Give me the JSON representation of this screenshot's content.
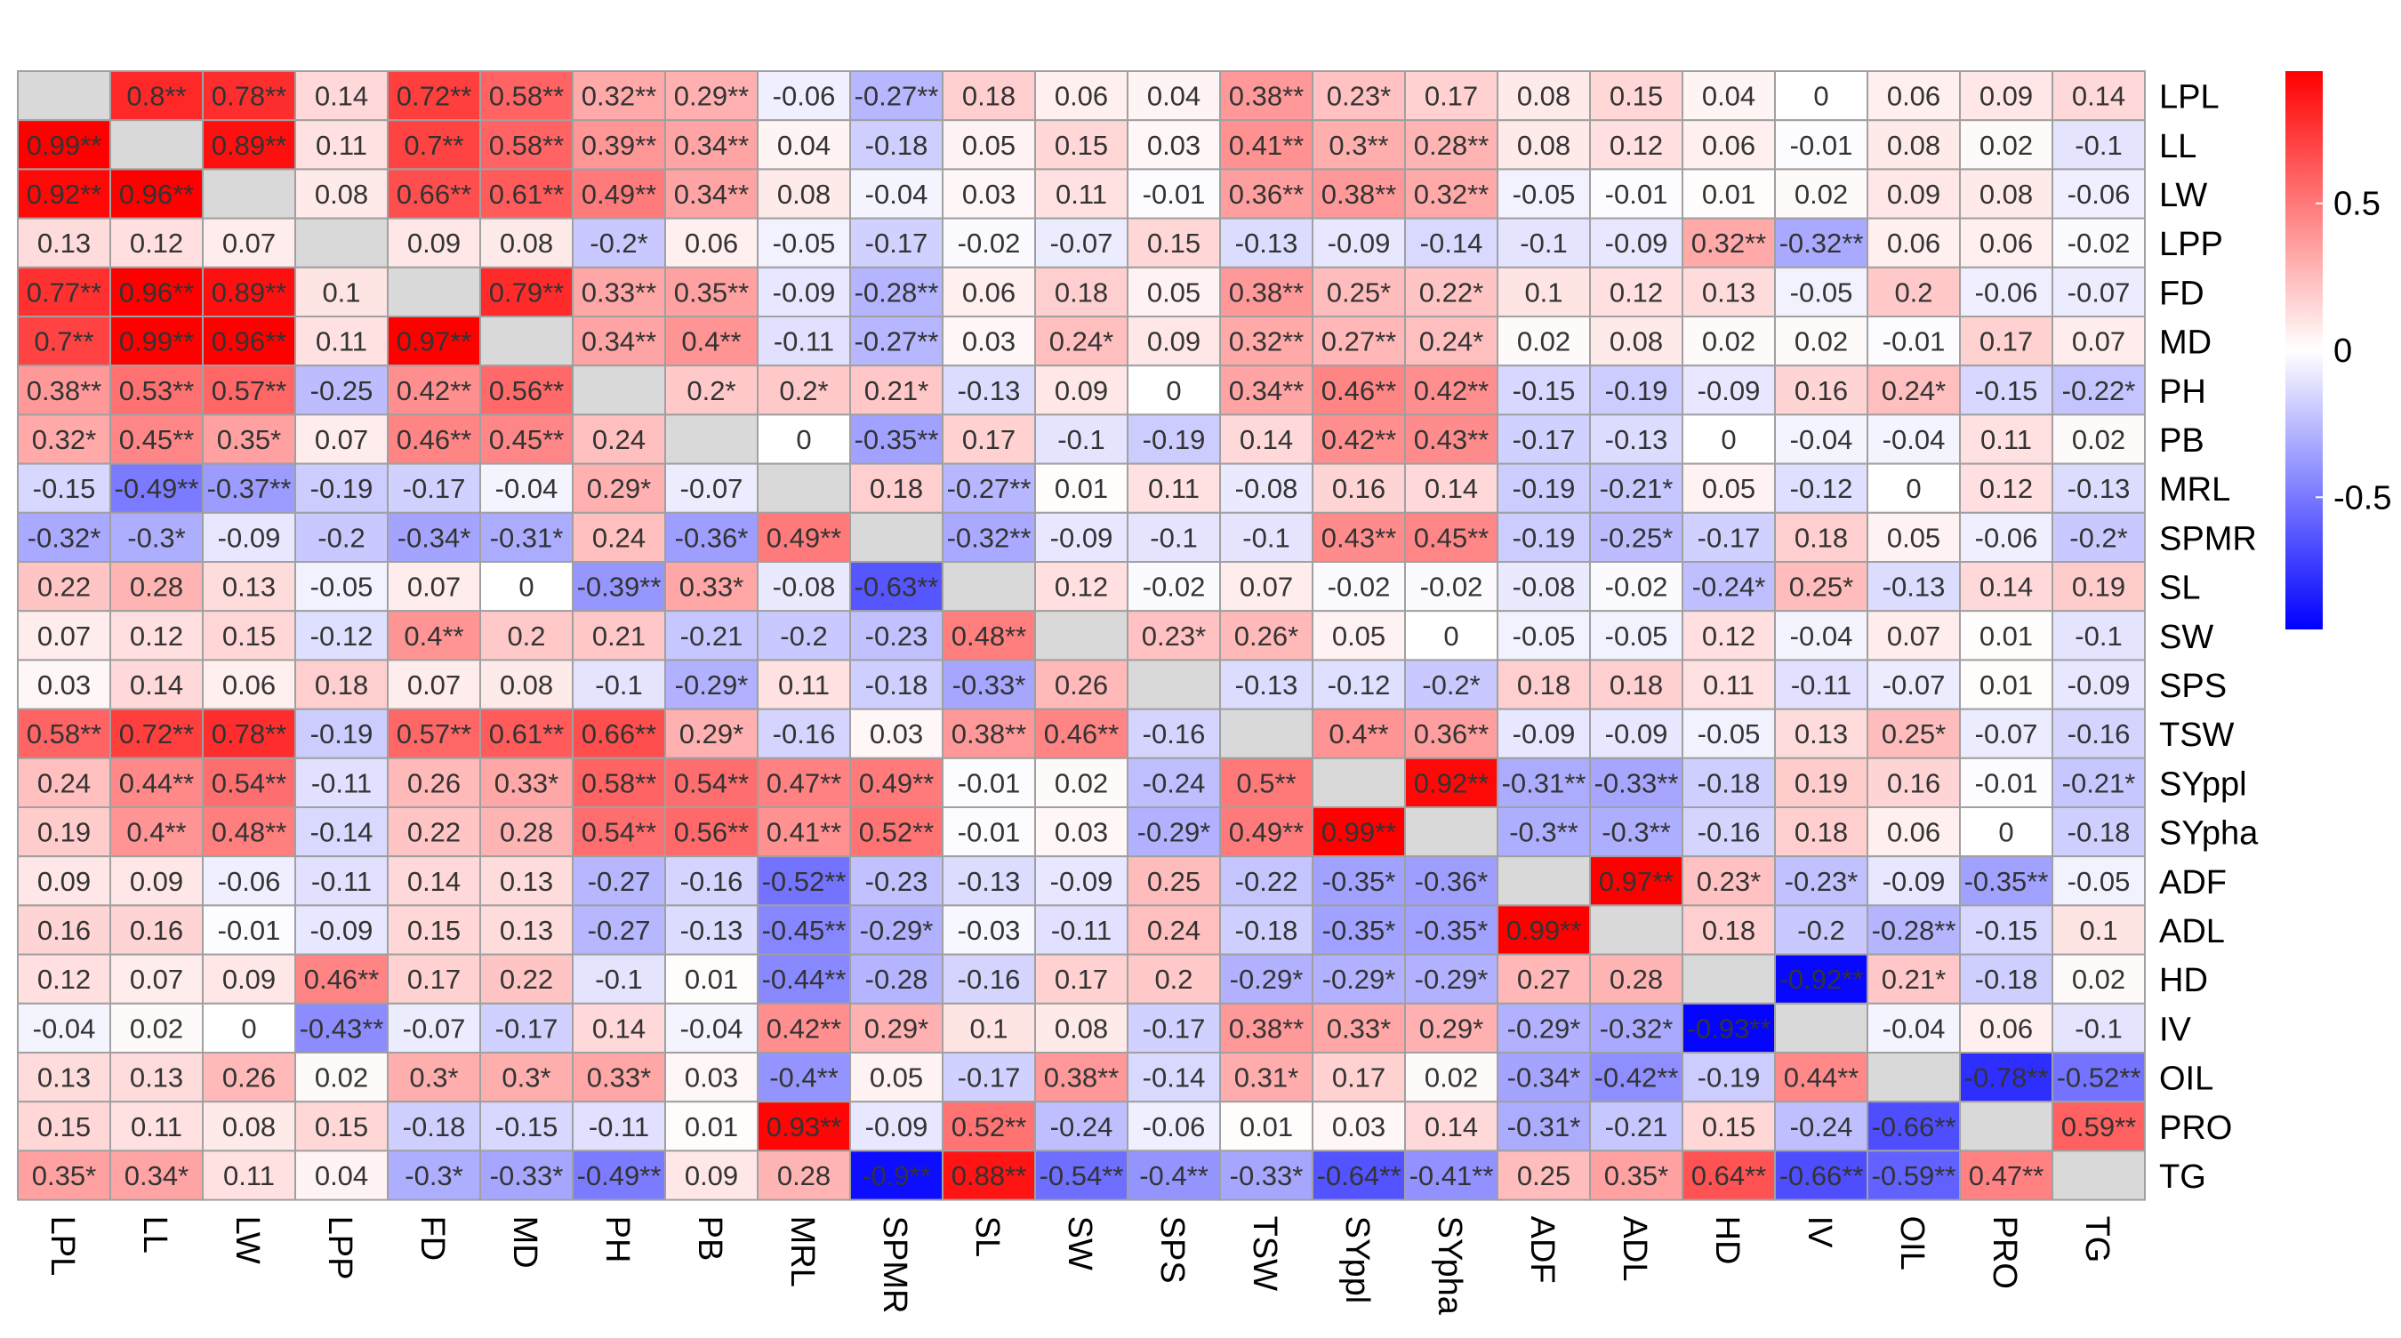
{
  "chart_data": {
    "type": "heatmap",
    "title": "",
    "xlabel": "",
    "ylabel": "",
    "grid": true,
    "legend_position": "right",
    "variables": [
      "LPL",
      "LL",
      "LW",
      "LPP",
      "FD",
      "MD",
      "PH",
      "PB",
      "MRL",
      "SPMR",
      "SL",
      "SW",
      "SPS",
      "TSW",
      "SYppl",
      "SYpha",
      "ADF",
      "ADL",
      "HD",
      "IV",
      "OIL",
      "PRO",
      "TG"
    ],
    "colorbar": {
      "min": -0.95,
      "max": 0.95,
      "low_color": "#0000ff",
      "mid_color": "#ffffff",
      "high_color": "#ff0000",
      "diagonal_color": "#d9d9d9",
      "ticks": [
        {
          "value": 0.5,
          "label": "0.5"
        },
        {
          "value": 0,
          "label": "0"
        },
        {
          "value": -0.5,
          "label": "-0.5"
        }
      ]
    },
    "cells": [
      [
        "",
        "0.8**",
        "0.78**",
        "0.14",
        "0.72**",
        "0.58**",
        "0.32**",
        "0.29**",
        "-0.06",
        "-0.27**",
        "0.18",
        "0.06",
        "0.04",
        "0.38**",
        "0.23*",
        "0.17",
        "0.08",
        "0.15",
        "0.04",
        "0",
        "0.06",
        "0.09",
        "0.14"
      ],
      [
        "0.99**",
        "",
        "0.89**",
        "0.11",
        "0.7**",
        "0.58**",
        "0.39**",
        "0.34**",
        "0.04",
        "-0.18",
        "0.05",
        "0.15",
        "0.03",
        "0.41**",
        "0.3**",
        "0.28**",
        "0.08",
        "0.12",
        "0.06",
        "-0.01",
        "0.08",
        "0.02",
        "-0.1"
      ],
      [
        "0.92**",
        "0.96**",
        "",
        "0.08",
        "0.66**",
        "0.61**",
        "0.49**",
        "0.34**",
        "0.08",
        "-0.04",
        "0.03",
        "0.11",
        "-0.01",
        "0.36**",
        "0.38**",
        "0.32**",
        "-0.05",
        "-0.01",
        "0.01",
        "0.02",
        "0.09",
        "0.08",
        "-0.06"
      ],
      [
        "0.13",
        "0.12",
        "0.07",
        "",
        "0.09",
        "0.08",
        "-0.2*",
        "0.06",
        "-0.05",
        "-0.17",
        "-0.02",
        "-0.07",
        "0.15",
        "-0.13",
        "-0.09",
        "-0.14",
        "-0.1",
        "-0.09",
        "0.32**",
        "-0.32**",
        "0.06",
        "0.06",
        "-0.02"
      ],
      [
        "0.77**",
        "0.96**",
        "0.89**",
        "0.1",
        "",
        "0.79**",
        "0.33**",
        "0.35**",
        "-0.09",
        "-0.28**",
        "0.06",
        "0.18",
        "0.05",
        "0.38**",
        "0.25*",
        "0.22*",
        "0.1",
        "0.12",
        "0.13",
        "-0.05",
        "0.2",
        "-0.06",
        "-0.07"
      ],
      [
        "0.7**",
        "0.99**",
        "0.96**",
        "0.11",
        "0.97**",
        "",
        "0.34**",
        "0.4**",
        "-0.11",
        "-0.27**",
        "0.03",
        "0.24*",
        "0.09",
        "0.32**",
        "0.27**",
        "0.24*",
        "0.02",
        "0.08",
        "0.02",
        "0.02",
        "-0.01",
        "0.17",
        "0.07"
      ],
      [
        "0.38**",
        "0.53**",
        "0.57**",
        "-0.25",
        "0.42**",
        "0.56**",
        "",
        "0.2*",
        "0.2*",
        "0.21*",
        "-0.13",
        "0.09",
        "0",
        "0.34**",
        "0.46**",
        "0.42**",
        "-0.15",
        "-0.19",
        "-0.09",
        "0.16",
        "0.24*",
        "-0.15",
        "-0.22*"
      ],
      [
        "0.32*",
        "0.45**",
        "0.35*",
        "0.07",
        "0.46**",
        "0.45**",
        "0.24",
        "",
        "0",
        "-0.35**",
        "0.17",
        "-0.1",
        "-0.19",
        "0.14",
        "0.42**",
        "0.43**",
        "-0.17",
        "-0.13",
        "0",
        "-0.04",
        "-0.04",
        "0.11",
        "0.02"
      ],
      [
        "-0.15",
        "-0.49**",
        "-0.37**",
        "-0.19",
        "-0.17",
        "-0.04",
        "0.29*",
        "-0.07",
        "",
        "0.18",
        "-0.27**",
        "0.01",
        "0.11",
        "-0.08",
        "0.16",
        "0.14",
        "-0.19",
        "-0.21*",
        "0.05",
        "-0.12",
        "0",
        "0.12",
        "-0.13"
      ],
      [
        "-0.32*",
        "-0.3*",
        "-0.09",
        "-0.2",
        "-0.34*",
        "-0.31*",
        "0.24",
        "-0.36*",
        "0.49**",
        "",
        "-0.32**",
        "-0.09",
        "-0.1",
        "-0.1",
        "0.43**",
        "0.45**",
        "-0.19",
        "-0.25*",
        "-0.17",
        "0.18",
        "0.05",
        "-0.06",
        "-0.2*"
      ],
      [
        "0.22",
        "0.28",
        "0.13",
        "-0.05",
        "0.07",
        "0",
        "-0.39**",
        "0.33*",
        "-0.08",
        "-0.63**",
        "",
        "0.12",
        "-0.02",
        "0.07",
        "-0.02",
        "-0.02",
        "-0.08",
        "-0.02",
        "-0.24*",
        "0.25*",
        "-0.13",
        "0.14",
        "0.19"
      ],
      [
        "0.07",
        "0.12",
        "0.15",
        "-0.12",
        "0.4**",
        "0.2",
        "0.21",
        "-0.21",
        "-0.2",
        "-0.23",
        "0.48**",
        "",
        "0.23*",
        "0.26*",
        "0.05",
        "0",
        "-0.05",
        "-0.05",
        "0.12",
        "-0.04",
        "0.07",
        "0.01",
        "-0.1"
      ],
      [
        "0.03",
        "0.14",
        "0.06",
        "0.18",
        "0.07",
        "0.08",
        "-0.1",
        "-0.29*",
        "0.11",
        "-0.18",
        "-0.33*",
        "0.26",
        "",
        "-0.13",
        "-0.12",
        "-0.2*",
        "0.18",
        "0.18",
        "0.11",
        "-0.11",
        "-0.07",
        "0.01",
        "-0.09"
      ],
      [
        "0.58**",
        "0.72**",
        "0.78**",
        "-0.19",
        "0.57**",
        "0.61**",
        "0.66**",
        "0.29*",
        "-0.16",
        "0.03",
        "0.38**",
        "0.46**",
        "-0.16",
        "",
        "0.4**",
        "0.36**",
        "-0.09",
        "-0.09",
        "-0.05",
        "0.13",
        "0.25*",
        "-0.07",
        "-0.16"
      ],
      [
        "0.24",
        "0.44**",
        "0.54**",
        "-0.11",
        "0.26",
        "0.33*",
        "0.58**",
        "0.54**",
        "0.47**",
        "0.49**",
        "-0.01",
        "0.02",
        "-0.24",
        "0.5**",
        "",
        "0.92**",
        "-0.31**",
        "-0.33**",
        "-0.18",
        "0.19",
        "0.16",
        "-0.01",
        "-0.21*"
      ],
      [
        "0.19",
        "0.4**",
        "0.48**",
        "-0.14",
        "0.22",
        "0.28",
        "0.54**",
        "0.56**",
        "0.41**",
        "0.52**",
        "-0.01",
        "0.03",
        "-0.29*",
        "0.49**",
        "0.99**",
        "",
        "-0.3**",
        "-0.3**",
        "-0.16",
        "0.18",
        "0.06",
        "0",
        "-0.18"
      ],
      [
        "0.09",
        "0.09",
        "-0.06",
        "-0.11",
        "0.14",
        "0.13",
        "-0.27",
        "-0.16",
        "-0.52**",
        "-0.23",
        "-0.13",
        "-0.09",
        "0.25",
        "-0.22",
        "-0.35*",
        "-0.36*",
        "",
        "0.97**",
        "0.23*",
        "-0.23*",
        "-0.09",
        "-0.35**",
        "-0.05"
      ],
      [
        "0.16",
        "0.16",
        "-0.01",
        "-0.09",
        "0.15",
        "0.13",
        "-0.27",
        "-0.13",
        "-0.45**",
        "-0.29*",
        "-0.03",
        "-0.11",
        "0.24",
        "-0.18",
        "-0.35*",
        "-0.35*",
        "0.99**",
        "",
        "0.18",
        "-0.2",
        "-0.28**",
        "-0.15",
        "0.1"
      ],
      [
        "0.12",
        "0.07",
        "0.09",
        "0.46**",
        "0.17",
        "0.22",
        "-0.1",
        "0.01",
        "-0.44**",
        "-0.28",
        "-0.16",
        "0.17",
        "0.2",
        "-0.29*",
        "-0.29*",
        "-0.29*",
        "0.27",
        "0.28",
        "",
        "-0.92**",
        "0.21*",
        "-0.18",
        "0.02"
      ],
      [
        "-0.04",
        "0.02",
        "0",
        "-0.43**",
        "-0.07",
        "-0.17",
        "0.14",
        "-0.04",
        "0.42**",
        "0.29*",
        "0.1",
        "0.08",
        "-0.17",
        "0.38**",
        "0.33*",
        "0.29*",
        "-0.29*",
        "-0.32*",
        "-0.93**",
        "",
        "-0.04",
        "0.06",
        "-0.1"
      ],
      [
        "0.13",
        "0.13",
        "0.26",
        "0.02",
        "0.3*",
        "0.3*",
        "0.33*",
        "0.03",
        "-0.4**",
        "0.05",
        "-0.17",
        "0.38**",
        "-0.14",
        "0.31*",
        "0.17",
        "0.02",
        "-0.34*",
        "-0.42**",
        "-0.19",
        "0.44**",
        "",
        "-0.78**",
        "-0.52**"
      ],
      [
        "0.15",
        "0.11",
        "0.08",
        "0.15",
        "-0.18",
        "-0.15",
        "-0.11",
        "0.01",
        "0.93**",
        "-0.09",
        "0.52**",
        "-0.24",
        "-0.06",
        "0.01",
        "0.03",
        "0.14",
        "-0.31*",
        "-0.21",
        "0.15",
        "-0.24",
        "-0.66**",
        "",
        "0.59**"
      ],
      [
        "0.35*",
        "0.34*",
        "0.11",
        "0.04",
        "-0.3*",
        "-0.33*",
        "-0.49**",
        "0.09",
        "0.28",
        "-0.9**",
        "0.88**",
        "-0.54**",
        "-0.4**",
        "-0.33*",
        "-0.64**",
        "-0.41**",
        "0.25",
        "0.35*",
        "0.64**",
        "-0.66**",
        "-0.59**",
        "0.47**",
        ""
      ]
    ]
  }
}
